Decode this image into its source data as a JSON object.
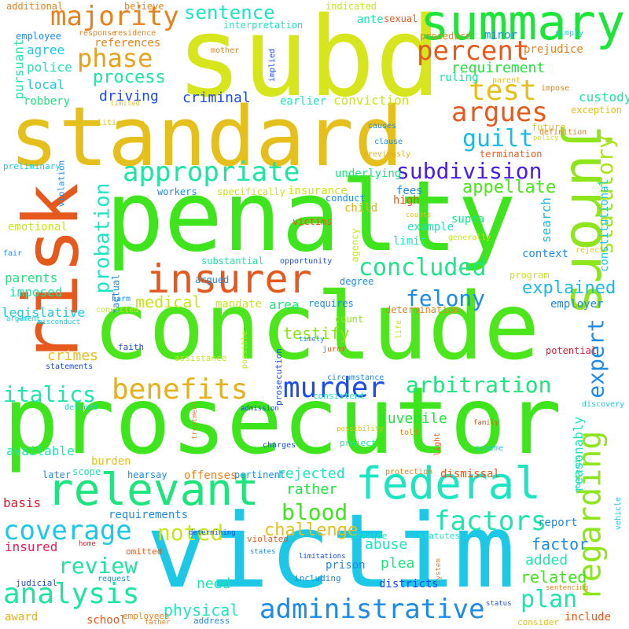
{
  "words": [
    {
      "text": "prosecutor",
      "color": "#3ee51c",
      "rot": 0
    },
    {
      "text": "victim",
      "color": "#1cc8e5",
      "rot": 0
    },
    {
      "text": "conclude",
      "color": "#4de51c",
      "rot": 0
    },
    {
      "text": "penalty",
      "color": "#3ee51c",
      "rot": 0
    },
    {
      "text": "standard",
      "color": "#e5c01c",
      "rot": 0
    },
    {
      "text": "subd",
      "color": "#d6e51c",
      "rot": 0
    },
    {
      "text": "risk",
      "color": "#e5591c",
      "rot": 270
    },
    {
      "text": "jurors",
      "color": "#8ee51c",
      "rot": 90
    },
    {
      "text": "summary",
      "color": "#1ce53a",
      "rot": 0
    },
    {
      "text": "federal",
      "color": "#1ce5c4",
      "rot": 0
    },
    {
      "text": "relevant",
      "color": "#1ce57d",
      "rot": 0
    },
    {
      "text": "insurer",
      "color": "#e5591c",
      "rot": 0
    },
    {
      "text": "murder",
      "color": "#1c4ce5",
      "rot": 0
    },
    {
      "text": "regarding",
      "color": "#8ee51c",
      "rot": 270
    },
    {
      "text": "appropriate",
      "color": "#1ce5a1",
      "rot": 0
    },
    {
      "text": "administrative",
      "color": "#1c8be5",
      "rot": 0
    },
    {
      "text": "analysis",
      "color": "#1ce5a1",
      "rot": 0
    },
    {
      "text": "benefits",
      "color": "#e5b01c",
      "rot": 0
    },
    {
      "text": "factors",
      "color": "#1ce5ad",
      "rot": 0
    },
    {
      "text": "coverage",
      "color": "#1cc8e5",
      "rot": 0
    },
    {
      "text": "concluded",
      "color": "#1ce58b",
      "rot": 0
    },
    {
      "text": "majority",
      "color": "#e5821c",
      "rot": 0
    },
    {
      "text": "phase",
      "color": "#e5a21c",
      "rot": 0
    },
    {
      "text": "percent",
      "color": "#e5591c",
      "rot": 0
    },
    {
      "text": "test",
      "color": "#e5c01c",
      "rot": 0
    },
    {
      "text": "argues",
      "color": "#e5591c",
      "rot": 0
    },
    {
      "text": "guilt",
      "color": "#1cb9e5",
      "rot": 0
    },
    {
      "text": "subdivision",
      "color": "#4a1ce5",
      "rot": 0
    },
    {
      "text": "statutory",
      "color": "#a9e51c",
      "rot": 270
    },
    {
      "text": "felony",
      "color": "#1c8be5",
      "rot": 0
    },
    {
      "text": "expert",
      "color": "#1c8be5",
      "rot": 270
    },
    {
      "text": "arbitration",
      "color": "#1ce57d",
      "rot": 0
    },
    {
      "text": "probation",
      "color": "#1ce5c4",
      "rot": 270
    },
    {
      "text": "italics",
      "color": "#1ce5ad",
      "rot": 0
    },
    {
      "text": "blood",
      "color": "#3ee51c",
      "rot": 0
    },
    {
      "text": "review",
      "color": "#1ce5a1",
      "rot": 0
    },
    {
      "text": "noted",
      "color": "#c8e51c",
      "rot": 0
    },
    {
      "text": "plan",
      "color": "#1ce5ad",
      "rot": 0
    },
    {
      "text": "sentence",
      "color": "#1ce5c4",
      "rot": 0
    },
    {
      "text": "process",
      "color": "#1ce5a1",
      "rot": 0
    },
    {
      "text": "explained",
      "color": "#1cb9e5",
      "rot": 0
    },
    {
      "text": "appellate",
      "color": "#4de51c",
      "rot": 0
    },
    {
      "text": "challenge",
      "color": "#e5c01c",
      "rot": 0
    },
    {
      "text": "requirement",
      "color": "#1ce53a",
      "rot": 0
    },
    {
      "text": "criminal",
      "color": "#1c4ce5",
      "rot": 0
    },
    {
      "text": "driving",
      "color": "#1c4ce5",
      "rot": 0
    },
    {
      "text": "medical",
      "color": "#c8e51c",
      "rot": 0
    },
    {
      "text": "physical",
      "color": "#1ce5c4",
      "rot": 0
    },
    {
      "text": "custody",
      "color": "#1ce5a1",
      "rot": 0
    },
    {
      "text": "testify",
      "color": "#8ee51c",
      "rot": 0
    },
    {
      "text": "crimes",
      "color": "#e5c01c",
      "rot": 0
    },
    {
      "text": "factor",
      "color": "#1c8be5",
      "rot": 0
    },
    {
      "text": "added",
      "color": "#1ce5ad",
      "rot": 0
    },
    {
      "text": "related",
      "color": "#3ee51c",
      "rot": 0
    },
    {
      "text": "plea",
      "color": "#1ce57d",
      "rot": 0
    },
    {
      "text": "abuse",
      "color": "#1ce5c4",
      "rot": 0
    },
    {
      "text": "rejected",
      "color": "#1ce5c4",
      "rot": 0
    },
    {
      "text": "rather",
      "color": "#1ce53a",
      "rot": 0
    },
    {
      "text": "juvenile",
      "color": "#1ce53a",
      "rot": 0
    },
    {
      "text": "reasonably",
      "color": "#1ce5c4",
      "rot": 270
    },
    {
      "text": "search",
      "color": "#1cb9e5",
      "rot": 270
    },
    {
      "text": "need",
      "color": "#1ce5ad",
      "rot": 0
    },
    {
      "text": "area",
      "color": "#1ce57d",
      "rot": 0
    },
    {
      "text": "conviction",
      "color": "#c8e51c",
      "rot": 0
    },
    {
      "text": "local",
      "color": "#1cc8e5",
      "rot": 0
    },
    {
      "text": "police",
      "color": "#1ce5ad",
      "rot": 0
    },
    {
      "text": "agree",
      "color": "#1cc8e5",
      "rot": 0
    },
    {
      "text": "pursuant",
      "color": "#1ce5ad",
      "rot": 270
    },
    {
      "text": "parents",
      "color": "#1ce57d",
      "rot": 0
    },
    {
      "text": "imposed",
      "color": "#1ce5ad",
      "rot": 0
    },
    {
      "text": "legislative",
      "color": "#1cc8e5",
      "rot": 0
    },
    {
      "text": "basis",
      "color": "#e51c2b",
      "rot": 0
    },
    {
      "text": "available",
      "color": "#1ce5ad",
      "rot": 0
    },
    {
      "text": "insured",
      "color": "#e51c5b",
      "rot": 0
    },
    {
      "text": "references",
      "color": "#e5821c",
      "rot": 0
    },
    {
      "text": "prejudice",
      "color": "#e5821c",
      "rot": 0
    },
    {
      "text": "fees",
      "color": "#1c8be5",
      "rot": 0
    },
    {
      "text": "high",
      "color": "#e5591c",
      "rot": 0
    },
    {
      "text": "insurance",
      "color": "#c8e51c",
      "rot": 0
    },
    {
      "text": "constitutional",
      "color": "#1cc8e5",
      "rot": 270
    },
    {
      "text": "mandate",
      "color": "#c8e51c",
      "rot": 0
    },
    {
      "text": "employer",
      "color": "#1c8be5",
      "rot": 0
    },
    {
      "text": "context",
      "color": "#1c8be5",
      "rot": 0
    },
    {
      "text": "underlying",
      "color": "#1ce57d",
      "rot": 0
    },
    {
      "text": "ante",
      "color": "#1ce5ad",
      "rot": 0
    },
    {
      "text": "minor",
      "color": "#1c8be5",
      "rot": 0
    },
    {
      "text": "ruling",
      "color": "#1ce5a1",
      "rot": 0
    },
    {
      "text": "earlier",
      "color": "#1ce5c4",
      "rot": 0
    },
    {
      "text": "robbery",
      "color": "#1ce57d",
      "rot": 0
    },
    {
      "text": "requirements",
      "color": "#1c8be5",
      "rot": 0
    },
    {
      "text": "report",
      "color": "#1c8be5",
      "rot": 0
    },
    {
      "text": "dismissal",
      "color": "#e5591c",
      "rot": 0
    },
    {
      "text": "districts",
      "color": "#1c4ce5",
      "rot": 0
    },
    {
      "text": "prison",
      "color": "#1c8be5",
      "rot": 0
    },
    {
      "text": "school",
      "color": "#e5591c",
      "rot": 0
    },
    {
      "text": "award",
      "color": "#e5b01c",
      "rot": 0
    },
    {
      "text": "include",
      "color": "#e5591c",
      "rot": 0
    },
    {
      "text": "emotional",
      "color": "#c8e51c",
      "rot": 0
    },
    {
      "text": "burden",
      "color": "#e5c01c",
      "rot": 0
    },
    {
      "text": "offenses",
      "color": "#e5821c",
      "rot": 0
    },
    {
      "text": "supra",
      "color": "#1ce58b",
      "rot": 0
    },
    {
      "text": "child",
      "color": "#e5b01c",
      "rot": 0
    },
    {
      "text": "example",
      "color": "#1ce5c4",
      "rot": 0
    },
    {
      "text": "limit",
      "color": "#1ce5c4",
      "rot": 0
    },
    {
      "text": "workers",
      "color": "#1c8be5",
      "rot": 0
    },
    {
      "text": "specifically",
      "color": "#c8e51c",
      "rot": 0
    },
    {
      "text": "exception",
      "color": "#e5c01c",
      "rot": 0
    },
    {
      "text": "termination",
      "color": "#e5591c",
      "rot": 0
    },
    {
      "text": "future",
      "color": "#e5c01c",
      "rot": 0
    },
    {
      "text": "factual",
      "color": "#1c8be5",
      "rot": 270
    },
    {
      "text": "program",
      "color": "#c8e51c",
      "rot": 0
    },
    {
      "text": "degree",
      "color": "#1c8be5",
      "rot": 0
    },
    {
      "text": "requires",
      "color": "#1c8be5",
      "rot": 0
    },
    {
      "text": "count",
      "color": "#8ee51c",
      "rot": 0
    },
    {
      "text": "potential",
      "color": "#e51c2b",
      "rot": 0
    },
    {
      "text": "determination",
      "color": "#e5821c",
      "rot": 0
    },
    {
      "text": "agency",
      "color": "#c8e51c",
      "rot": 270
    },
    {
      "text": "substantial",
      "color": "#1ce5a1",
      "rot": 0
    },
    {
      "text": "argued",
      "color": "#1c8be5",
      "rot": 0
    },
    {
      "text": "victims",
      "color": "#e5591c",
      "rot": 0
    },
    {
      "text": "conduct",
      "color": "#1c8be5",
      "rot": 0
    },
    {
      "text": "scope",
      "color": "#1ce5ad",
      "rot": 0
    },
    {
      "text": "later",
      "color": "#1c8be5",
      "rot": 0
    },
    {
      "text": "hearsay",
      "color": "#1c8be5",
      "rot": 0
    },
    {
      "text": "pertinent",
      "color": "#1c8be5",
      "rot": 0
    },
    {
      "text": "additional",
      "color": "#e5821c",
      "rot": 0
    },
    {
      "text": "believe",
      "color": "#e5821c",
      "rot": 0
    },
    {
      "text": "indicated",
      "color": "#c8e51c",
      "rot": 0
    },
    {
      "text": "sexual",
      "color": "#e5591c",
      "rot": 0
    },
    {
      "text": "employee",
      "color": "#1c8be5",
      "rot": 0
    },
    {
      "text": "response",
      "color": "#e5821c",
      "rot": 0
    },
    {
      "text": "residence",
      "color": "#e5821c",
      "rot": 0
    },
    {
      "text": "interpretation",
      "color": "#1ce5c4",
      "rot": 0
    },
    {
      "text": "procedure",
      "color": "#e5821c",
      "rot": 0
    },
    {
      "text": "simply",
      "color": "#1cc8e5",
      "rot": 0
    },
    {
      "text": "mother",
      "color": "#e5821c",
      "rot": 0
    },
    {
      "text": "implied",
      "color": "#1c4ce5",
      "rot": 270
    },
    {
      "text": "parent",
      "color": "#e5c01c",
      "rot": 0
    },
    {
      "text": "impose",
      "color": "#e5821c",
      "rot": 0
    },
    {
      "text": "limited",
      "color": "#e5c01c",
      "rot": 0
    },
    {
      "text": "litigation",
      "color": "#e5c01c",
      "rot": 0
    },
    {
      "text": "causes",
      "color": "#1c8be5",
      "rot": 0
    },
    {
      "text": "definition",
      "color": "#e5821c",
      "rot": 0
    },
    {
      "text": "policy",
      "color": "#c8e51c",
      "rot": 0
    },
    {
      "text": "clause",
      "color": "#1c8be5",
      "rot": 0
    },
    {
      "text": "previously",
      "color": "#e5b01c",
      "rot": 0
    },
    {
      "text": "preliminary",
      "color": "#1cc8e5",
      "rot": 0
    },
    {
      "text": "violation",
      "color": "#1c8be5",
      "rot": 270
    },
    {
      "text": "counts",
      "color": "#e5c01c",
      "rot": 0
    },
    {
      "text": "generally",
      "color": "#c8e51c",
      "rot": 0
    },
    {
      "text": "reject",
      "color": "#e5c01c",
      "rot": 0
    },
    {
      "text": "fair",
      "color": "#1c8be5",
      "rot": 0
    },
    {
      "text": "opportunity",
      "color": "#1c4ce5",
      "rot": 0
    },
    {
      "text": "harm",
      "color": "#1c8be5",
      "rot": 0
    },
    {
      "text": "convicted",
      "color": "#c8e51c",
      "rot": 0
    },
    {
      "text": "argument",
      "color": "#1cc8e5",
      "rot": 0
    },
    {
      "text": "misconduct",
      "color": "#1cc8e5",
      "rot": 0
    },
    {
      "text": "faith",
      "color": "#1c4ce5",
      "rot": 0
    },
    {
      "text": "statements",
      "color": "#1c4ce5",
      "rot": 0
    },
    {
      "text": "timely",
      "color": "#1c8be5",
      "rot": 0
    },
    {
      "text": "juror",
      "color": "#e5591c",
      "rot": 0
    },
    {
      "text": "life",
      "color": "#c8e51c",
      "rot": 270
    },
    {
      "text": "possible",
      "color": "#c8e51c",
      "rot": 270
    },
    {
      "text": "prosecution",
      "color": "#1c4ce5",
      "rot": 270
    },
    {
      "text": "assistance",
      "color": "#c8e51c",
      "rot": 0
    },
    {
      "text": "circumstance",
      "color": "#1c8be5",
      "rot": 0
    },
    {
      "text": "consistent",
      "color": "#1ce5c4",
      "rot": 0
    },
    {
      "text": "admission",
      "color": "#1c4ce5",
      "rot": 0
    },
    {
      "text": "defined",
      "color": "#1cc8e5",
      "rot": 0
    },
    {
      "text": "discovery",
      "color": "#1cc8e5",
      "rot": 0
    },
    {
      "text": "treatment",
      "color": "#e5821c",
      "rot": 270
    },
    {
      "text": "possibility",
      "color": "#e5c01c",
      "rot": 0
    },
    {
      "text": "family",
      "color": "#e5591c",
      "rot": 0
    },
    {
      "text": "told",
      "color": "#e5821c",
      "rot": 0
    },
    {
      "text": "light",
      "color": "#e5591c",
      "rot": 270
    },
    {
      "text": "scheme",
      "color": "#1cc8e5",
      "rot": 0
    },
    {
      "text": "charges",
      "color": "#1c4ce5",
      "rot": 0
    },
    {
      "text": "project",
      "color": "#1ce5a1",
      "rot": 0
    },
    {
      "text": "protection",
      "color": "#e5821c",
      "rot": 0
    },
    {
      "text": "contends",
      "color": "#1ce5ad",
      "rot": 270
    },
    {
      "text": "vehicle",
      "color": "#1cc8e5",
      "rot": 270
    },
    {
      "text": "determining",
      "color": "#1c4ce5",
      "rot": 0
    },
    {
      "text": "violated",
      "color": "#e5591c",
      "rot": 0
    },
    {
      "text": "provide",
      "color": "#1ce5c4",
      "rot": 0
    },
    {
      "text": "statutes",
      "color": "#1ce5c4",
      "rot": 0
    },
    {
      "text": "home",
      "color": "#e51c2b",
      "rot": 0
    },
    {
      "text": "omitted",
      "color": "#e5591c",
      "rot": 0
    },
    {
      "text": "states",
      "color": "#1c8be5",
      "rot": 0
    },
    {
      "text": "limitations",
      "color": "#1c4ce5",
      "rot": 0
    },
    {
      "text": "including",
      "color": "#1c8be5",
      "rot": 0
    },
    {
      "text": "system",
      "color": "#e5821c",
      "rot": 270
    },
    {
      "text": "sentencing",
      "color": "#e5821c",
      "rot": 0
    },
    {
      "text": "judicial",
      "color": "#1c4ce5",
      "rot": 0
    },
    {
      "text": "request",
      "color": "#1c8be5",
      "rot": 0
    },
    {
      "text": "employees",
      "color": "#e5821c",
      "rot": 0
    },
    {
      "text": "father",
      "color": "#e5821c",
      "rot": 0
    },
    {
      "text": "address",
      "color": "#1c8be5",
      "rot": 0
    },
    {
      "text": "status",
      "color": "#1c4ce5",
      "rot": 0
    },
    {
      "text": "consider",
      "color": "#e5c01c",
      "rot": 0
    }
  ]
}
